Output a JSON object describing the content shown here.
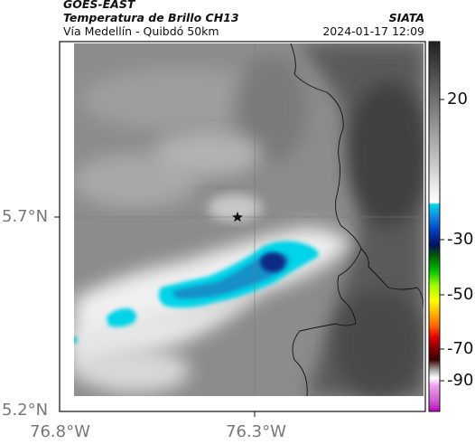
{
  "header": {
    "satellite": "GOES-EAST",
    "product": "Temperatura de Brillo CH13",
    "region": "Vía Medellín - Quibdó 50km",
    "source": "SIATA",
    "timestamp": "2024-01-17 12:09"
  },
  "axes": {
    "x_ticks": [
      "76.8°W",
      "76.3°W"
    ],
    "y_ticks": [
      "5.7°N",
      "5.2°N"
    ]
  },
  "colorbar": {
    "ticks": [
      "20",
      "-30",
      "-50",
      "-70",
      "-90"
    ]
  },
  "colors": {
    "cold_core": "#08206e",
    "cold_mid": "#1f90c8",
    "cold_edge": "#00d8e8",
    "warm_land": "#4a4a4a",
    "warm_cloud": "#ececec"
  },
  "marker": {
    "name": "star"
  }
}
